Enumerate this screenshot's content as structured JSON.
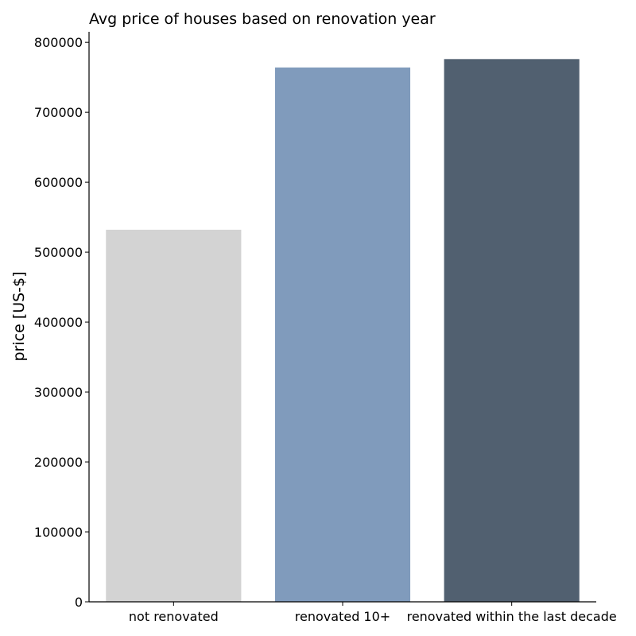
{
  "chart_data": {
    "type": "bar",
    "title": "Avg price of houses based on renovation year",
    "xlabel": "",
    "ylabel": "price [US-$]",
    "categories": [
      "not renovated",
      "renovated 10+",
      "renovated within the last decade"
    ],
    "values": [
      532000,
      764000,
      776000
    ],
    "colors": [
      "#d3d3d3",
      "#809bbc",
      "#516070"
    ],
    "ylim": [
      0,
      815000
    ],
    "yticks": [
      0,
      100000,
      200000,
      300000,
      400000,
      500000,
      600000,
      700000,
      800000
    ],
    "ytick_labels": [
      "0",
      "100000",
      "200000",
      "300000",
      "400000",
      "500000",
      "600000",
      "700000",
      "800000"
    ],
    "grid": false,
    "legend": "none"
  }
}
